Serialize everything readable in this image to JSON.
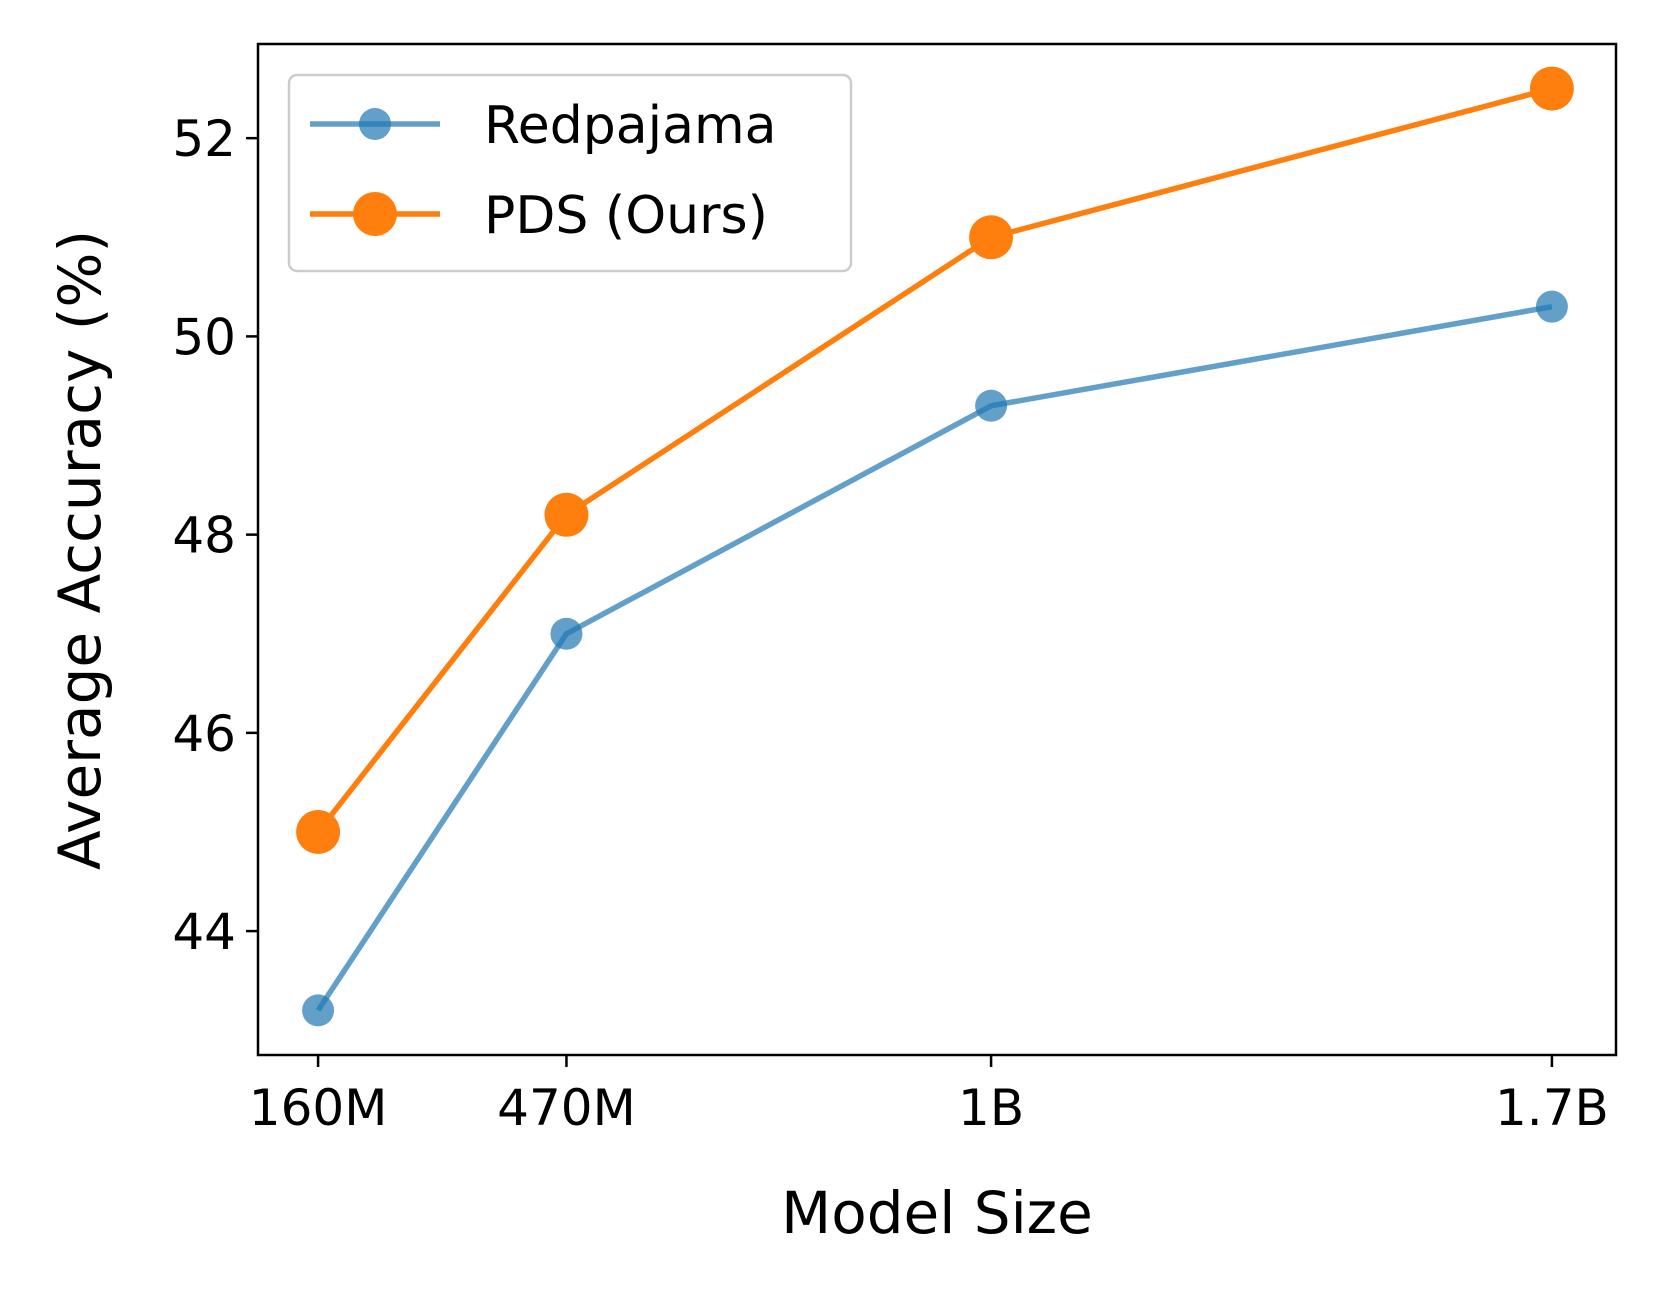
{
  "chart_data": {
    "type": "line",
    "title": "",
    "xlabel": "Model Size",
    "ylabel": "Average Accuracy (%)",
    "x": [
      160,
      470,
      1000,
      1700
    ],
    "x_unit": "M parameters",
    "xtick_labels": [
      "160M",
      "470M",
      "1B",
      "1.7B"
    ],
    "xlim": [
      85,
      1780
    ],
    "ylim": [
      42.75,
      52.95
    ],
    "yticks": [
      44,
      46,
      48,
      50,
      52
    ],
    "ytick_labels": [
      "44",
      "46",
      "48",
      "50",
      "52"
    ],
    "grid": false,
    "legend": "top-left",
    "series": [
      {
        "name": "Redpajama",
        "values": [
          43.2,
          47.0,
          49.3,
          50.3
        ],
        "color": "#1f77b4",
        "opacity": 0.7,
        "marker": "circle"
      },
      {
        "name": "PDS (Ours)",
        "values": [
          45.0,
          48.2,
          51.0,
          52.5
        ],
        "color": "#ff7f0e",
        "opacity": 1.0,
        "marker": "circle"
      }
    ]
  }
}
